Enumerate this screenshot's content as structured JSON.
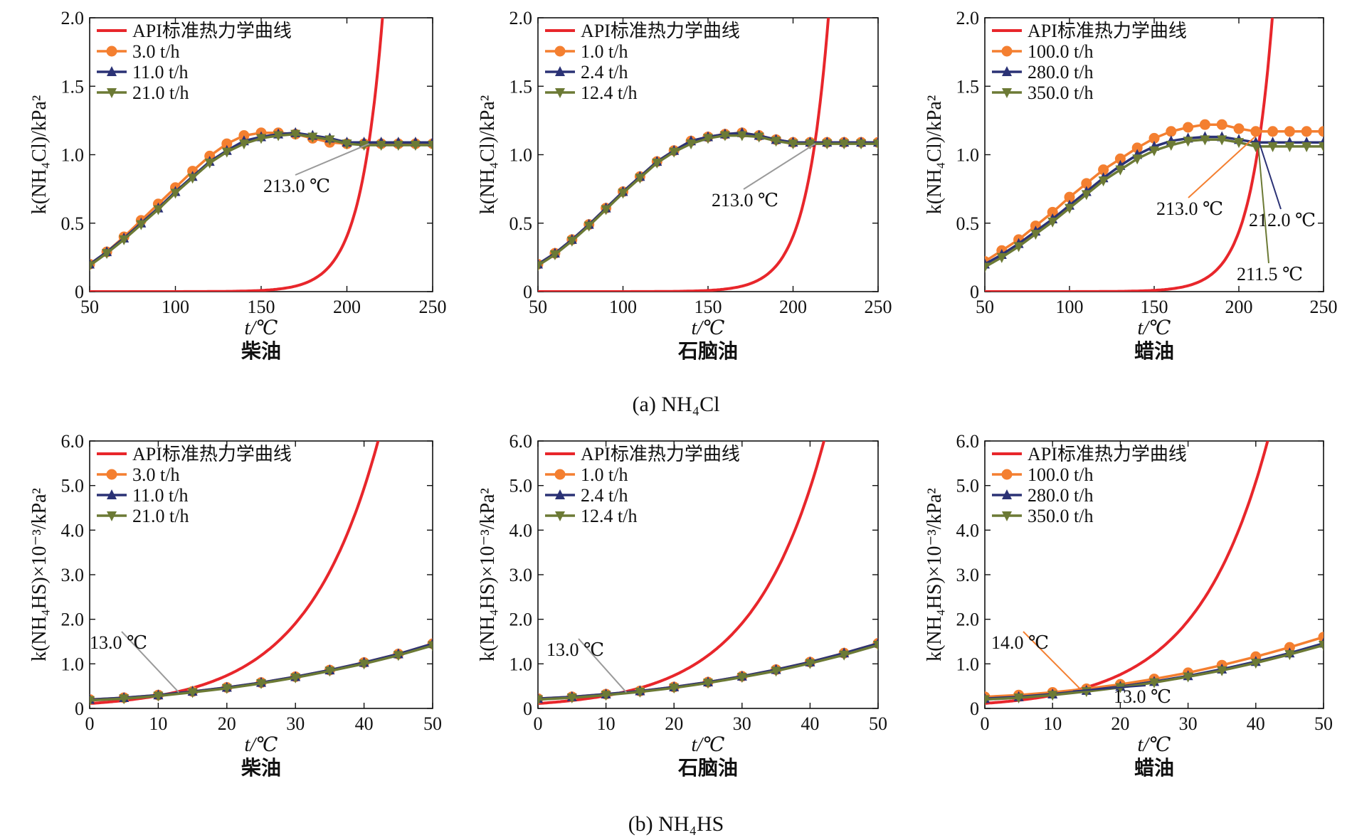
{
  "colors": {
    "api": "#e8262b",
    "orange": "#f47f30",
    "navy": "#2b3275",
    "olive": "#6c7a35",
    "leader_gray": "#9a9a9a"
  },
  "captions": {
    "a": "(a) NH₄Cl",
    "b": "(b) NH₄HS"
  },
  "ylabels": {
    "a": "k(NH₄Cl)/kPa²",
    "b": "k(NH₄HS)×10⁻³/kPa²"
  },
  "chart_data": [
    {
      "type": "line",
      "panel": "a1",
      "oil": "柴油",
      "xlabel": "t/℃",
      "ylabel": "k(NH₄Cl)/kPa²",
      "xlim": [
        50,
        250
      ],
      "ylim": [
        0,
        2.0
      ],
      "xticks": [
        "50",
        "100",
        "150",
        "200",
        "250"
      ],
      "yticks": [
        "0",
        "0.5",
        "1.0",
        "1.5",
        "2.0"
      ],
      "legend_position": "top-left",
      "x": [
        50,
        60,
        70,
        80,
        90,
        100,
        110,
        120,
        130,
        140,
        150,
        160,
        170,
        180,
        190,
        200,
        210,
        220,
        230,
        240,
        250
      ],
      "series": [
        {
          "name": "API标准热力学曲线",
          "kind": "api",
          "k0": 1.1,
          "t0": 213,
          "rate": 0.077
        },
        {
          "name": "3.0 t/h",
          "marker": "circle",
          "values": [
            0.2,
            0.29,
            0.4,
            0.52,
            0.64,
            0.76,
            0.88,
            0.99,
            1.08,
            1.14,
            1.16,
            1.16,
            1.15,
            1.12,
            1.09,
            1.08,
            1.08,
            1.08,
            1.08,
            1.08,
            1.08
          ]
        },
        {
          "name": "11.0 t/h",
          "marker": "triangle-up",
          "values": [
            0.2,
            0.29,
            0.39,
            0.5,
            0.61,
            0.73,
            0.84,
            0.95,
            1.03,
            1.1,
            1.13,
            1.15,
            1.16,
            1.14,
            1.12,
            1.09,
            1.09,
            1.09,
            1.09,
            1.09,
            1.09
          ]
        },
        {
          "name": "21.0 t/h",
          "marker": "triangle-down",
          "values": [
            0.19,
            0.28,
            0.38,
            0.49,
            0.6,
            0.72,
            0.83,
            0.94,
            1.02,
            1.08,
            1.12,
            1.14,
            1.15,
            1.13,
            1.11,
            1.08,
            1.07,
            1.07,
            1.07,
            1.07,
            1.07
          ]
        }
      ],
      "annotations": [
        {
          "text": "213.0 ℃",
          "x": 213,
          "y": 1.08
        }
      ]
    },
    {
      "type": "line",
      "panel": "a2",
      "oil": "石脑油",
      "xlabel": "t/℃",
      "ylabel": "k(NH₄Cl)/kPa²",
      "xlim": [
        50,
        250
      ],
      "ylim": [
        0,
        2.0
      ],
      "xticks": [
        "50",
        "100",
        "150",
        "200",
        "250"
      ],
      "yticks": [
        "0",
        "0.5",
        "1.0",
        "1.5",
        "2.0"
      ],
      "legend_position": "top-left",
      "x": [
        50,
        60,
        70,
        80,
        90,
        100,
        110,
        120,
        130,
        140,
        150,
        160,
        170,
        180,
        190,
        200,
        210,
        220,
        230,
        240,
        250
      ],
      "series": [
        {
          "name": "API标准热力学曲线",
          "kind": "api",
          "k0": 1.1,
          "t0": 213,
          "rate": 0.077
        },
        {
          "name": "1.0 t/h",
          "marker": "circle",
          "values": [
            0.2,
            0.28,
            0.38,
            0.49,
            0.61,
            0.73,
            0.84,
            0.95,
            1.03,
            1.1,
            1.13,
            1.15,
            1.16,
            1.14,
            1.11,
            1.09,
            1.09,
            1.09,
            1.09,
            1.09,
            1.09
          ]
        },
        {
          "name": "2.4 t/h",
          "marker": "triangle-up",
          "values": [
            0.2,
            0.28,
            0.38,
            0.49,
            0.61,
            0.73,
            0.84,
            0.95,
            1.03,
            1.1,
            1.13,
            1.15,
            1.16,
            1.14,
            1.11,
            1.09,
            1.09,
            1.09,
            1.09,
            1.09,
            1.09
          ]
        },
        {
          "name": "12.4 t/h",
          "marker": "triangle-down",
          "values": [
            0.19,
            0.27,
            0.37,
            0.48,
            0.6,
            0.72,
            0.83,
            0.94,
            1.02,
            1.08,
            1.12,
            1.14,
            1.14,
            1.13,
            1.1,
            1.08,
            1.08,
            1.08,
            1.08,
            1.08,
            1.08
          ]
        }
      ],
      "annotations": [
        {
          "text": "213.0 ℃",
          "x": 213,
          "y": 1.08
        }
      ]
    },
    {
      "type": "line",
      "panel": "a3",
      "oil": "蜡油",
      "xlabel": "t/℃",
      "ylabel": "k(NH₄Cl)/kPa²",
      "xlim": [
        50,
        250
      ],
      "ylim": [
        0,
        2.0
      ],
      "xticks": [
        "50",
        "100",
        "150",
        "200",
        "250"
      ],
      "yticks": [
        "0",
        "0.5",
        "1.0",
        "1.5",
        "2.0"
      ],
      "legend_position": "top-left",
      "x": [
        50,
        60,
        70,
        80,
        90,
        100,
        110,
        120,
        130,
        140,
        150,
        160,
        170,
        180,
        190,
        200,
        210,
        220,
        230,
        240,
        250
      ],
      "series": [
        {
          "name": "API标准热力学曲线",
          "kind": "api",
          "k0": 1.1,
          "t0": 212,
          "rate": 0.077
        },
        {
          "name": "100.0 t/h",
          "marker": "circle",
          "values": [
            0.22,
            0.3,
            0.38,
            0.48,
            0.58,
            0.69,
            0.79,
            0.89,
            0.97,
            1.05,
            1.12,
            1.17,
            1.2,
            1.22,
            1.22,
            1.19,
            1.17,
            1.17,
            1.17,
            1.17,
            1.17
          ]
        },
        {
          "name": "280.0 t/h",
          "marker": "triangle-up",
          "values": [
            0.2,
            0.27,
            0.35,
            0.44,
            0.53,
            0.63,
            0.73,
            0.83,
            0.92,
            1.0,
            1.06,
            1.1,
            1.12,
            1.13,
            1.13,
            1.11,
            1.09,
            1.09,
            1.09,
            1.09,
            1.09
          ]
        },
        {
          "name": "350.0 t/h",
          "marker": "triangle-down",
          "values": [
            0.18,
            0.25,
            0.33,
            0.42,
            0.51,
            0.61,
            0.71,
            0.81,
            0.89,
            0.97,
            1.03,
            1.07,
            1.1,
            1.11,
            1.11,
            1.09,
            1.06,
            1.06,
            1.06,
            1.06,
            1.06
          ]
        }
      ],
      "annotations": [
        {
          "text": "213.0 ℃",
          "x": 213,
          "y": 1.17
        },
        {
          "text": "212.0 ℃",
          "x": 212,
          "y": 1.09
        },
        {
          "text": "211.5 ℃",
          "x": 211.5,
          "y": 1.06
        }
      ]
    },
    {
      "type": "line",
      "panel": "b1",
      "oil": "柴油",
      "xlabel": "t/℃",
      "ylabel": "k(NH₄HS)×10⁻³/kPa²",
      "xlim": [
        0,
        50
      ],
      "ylim": [
        0,
        6.0
      ],
      "xticks": [
        "0",
        "10",
        "20",
        "30",
        "40",
        "50"
      ],
      "yticks": [
        "0",
        "1.0",
        "2.0",
        "3.0",
        "4.0",
        "5.0",
        "6.0"
      ],
      "legend_position": "top-left",
      "x": [
        0,
        5,
        10,
        15,
        20,
        25,
        30,
        35,
        40,
        45,
        50
      ],
      "series": [
        {
          "name": "API标准热力学曲线",
          "kind": "api",
          "k0": 0.38,
          "t0": 13,
          "rate": 0.095
        },
        {
          "name": "3.0 t/h",
          "marker": "circle",
          "values": [
            0.2,
            0.24,
            0.3,
            0.38,
            0.47,
            0.58,
            0.71,
            0.86,
            1.03,
            1.22,
            1.45
          ]
        },
        {
          "name": "11.0 t/h",
          "marker": "triangle-up",
          "values": [
            0.2,
            0.24,
            0.3,
            0.38,
            0.47,
            0.58,
            0.71,
            0.86,
            1.03,
            1.22,
            1.45
          ]
        },
        {
          "name": "21.0 t/h",
          "marker": "triangle-down",
          "values": [
            0.18,
            0.22,
            0.28,
            0.36,
            0.45,
            0.56,
            0.69,
            0.84,
            1.0,
            1.19,
            1.41
          ]
        }
      ],
      "annotations": [
        {
          "text": "13.0 ℃",
          "x": 13,
          "y": 0.36
        }
      ]
    },
    {
      "type": "line",
      "panel": "b2",
      "oil": "石脑油",
      "xlabel": "t/℃",
      "ylabel": "k(NH₄HS)×10⁻³/kPa²",
      "xlim": [
        0,
        50
      ],
      "ylim": [
        0,
        6.0
      ],
      "xticks": [
        "0",
        "10",
        "20",
        "30",
        "40",
        "50"
      ],
      "yticks": [
        "0",
        "1.0",
        "2.0",
        "3.0",
        "4.0",
        "5.0",
        "6.0"
      ],
      "legend_position": "top-left",
      "x": [
        0,
        5,
        10,
        15,
        20,
        25,
        30,
        35,
        40,
        45,
        50
      ],
      "series": [
        {
          "name": "API标准热力学曲线",
          "kind": "api",
          "k0": 0.38,
          "t0": 13,
          "rate": 0.095
        },
        {
          "name": "1.0 t/h",
          "marker": "circle",
          "values": [
            0.22,
            0.26,
            0.32,
            0.39,
            0.48,
            0.59,
            0.72,
            0.87,
            1.04,
            1.24,
            1.46
          ]
        },
        {
          "name": "2.4 t/h",
          "marker": "triangle-up",
          "values": [
            0.22,
            0.26,
            0.32,
            0.39,
            0.48,
            0.59,
            0.72,
            0.87,
            1.04,
            1.24,
            1.46
          ]
        },
        {
          "name": "12.4 t/h",
          "marker": "triangle-down",
          "values": [
            0.2,
            0.24,
            0.3,
            0.37,
            0.46,
            0.57,
            0.7,
            0.84,
            1.01,
            1.2,
            1.42
          ]
        }
      ],
      "annotations": [
        {
          "text": "13.0 ℃",
          "x": 13,
          "y": 0.36
        }
      ]
    },
    {
      "type": "line",
      "panel": "b3",
      "oil": "蜡油",
      "xlabel": "t/℃",
      "ylabel": "k(NH₄HS)×10⁻³/kPa²",
      "xlim": [
        0,
        50
      ],
      "ylim": [
        0,
        6.0
      ],
      "xticks": [
        "0",
        "10",
        "20",
        "30",
        "40",
        "50"
      ],
      "yticks": [
        "0",
        "1.0",
        "2.0",
        "3.0",
        "4.0",
        "5.0",
        "6.0"
      ],
      "legend_position": "top-left",
      "x": [
        0,
        5,
        10,
        15,
        20,
        25,
        30,
        35,
        40,
        45,
        50
      ],
      "series": [
        {
          "name": "API标准热力学曲线",
          "kind": "api",
          "k0": 0.43,
          "t0": 14,
          "rate": 0.095
        },
        {
          "name": "100.0 t/h",
          "marker": "circle",
          "values": [
            0.26,
            0.3,
            0.36,
            0.44,
            0.54,
            0.66,
            0.8,
            0.97,
            1.16,
            1.37,
            1.6
          ]
        },
        {
          "name": "280.0 t/h",
          "marker": "triangle-up",
          "values": [
            0.22,
            0.26,
            0.32,
            0.4,
            0.49,
            0.6,
            0.73,
            0.88,
            1.05,
            1.24,
            1.46
          ]
        },
        {
          "name": "350.0 t/h",
          "marker": "triangle-down",
          "values": [
            0.2,
            0.24,
            0.3,
            0.38,
            0.47,
            0.58,
            0.71,
            0.85,
            1.02,
            1.21,
            1.42
          ]
        }
      ],
      "annotations": [
        {
          "text": "14.0 ℃",
          "x": 14,
          "y": 0.45
        },
        {
          "text": "13.0 ℃",
          "x": 13,
          "y": 0.39
        }
      ]
    }
  ]
}
